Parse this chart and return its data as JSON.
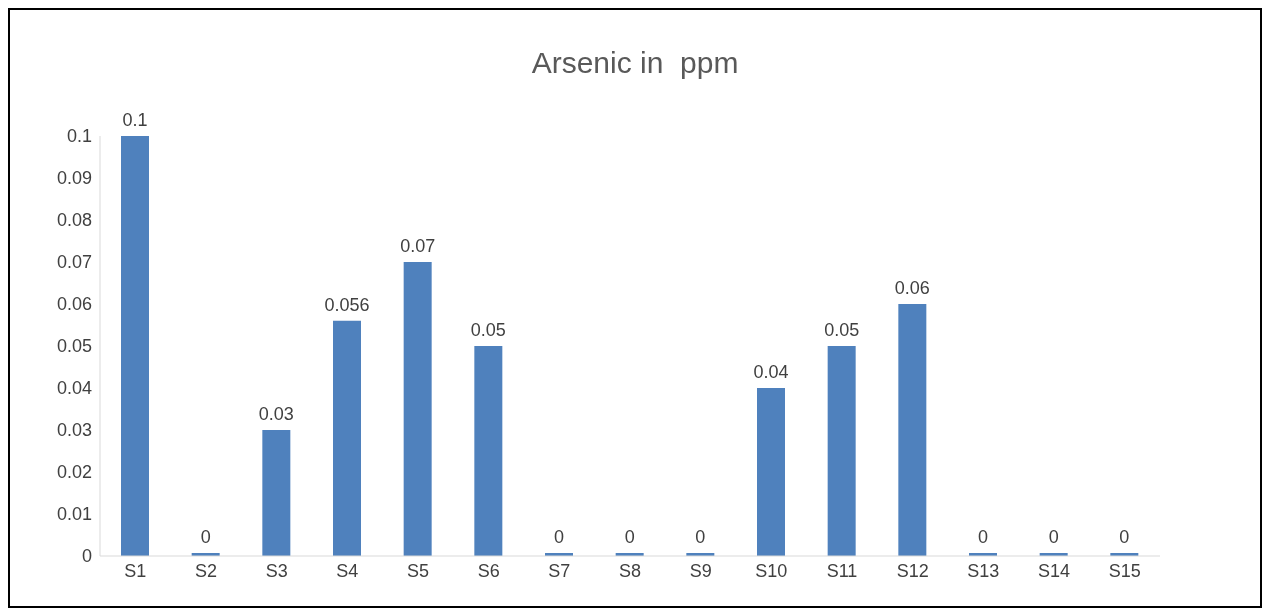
{
  "chart_data": {
    "type": "bar",
    "title": "Arsenic in  ppm",
    "categories": [
      "S1",
      "S2",
      "S3",
      "S4",
      "S5",
      "S6",
      "S7",
      "S8",
      "S9",
      "S10",
      "S11",
      "S12",
      "S13",
      "S14",
      "S15"
    ],
    "values": [
      0.1,
      0,
      0.03,
      0.056,
      0.07,
      0.05,
      0,
      0,
      0,
      0.04,
      0.05,
      0.06,
      0,
      0,
      0
    ],
    "color": "#4f81bd",
    "data_labels": true,
    "ylim": [
      0,
      0.1
    ],
    "yticks": [
      0,
      0.01,
      0.02,
      0.03,
      0.04,
      0.05,
      0.06,
      0.07,
      0.08,
      0.09,
      0.1
    ],
    "grid": false
  }
}
